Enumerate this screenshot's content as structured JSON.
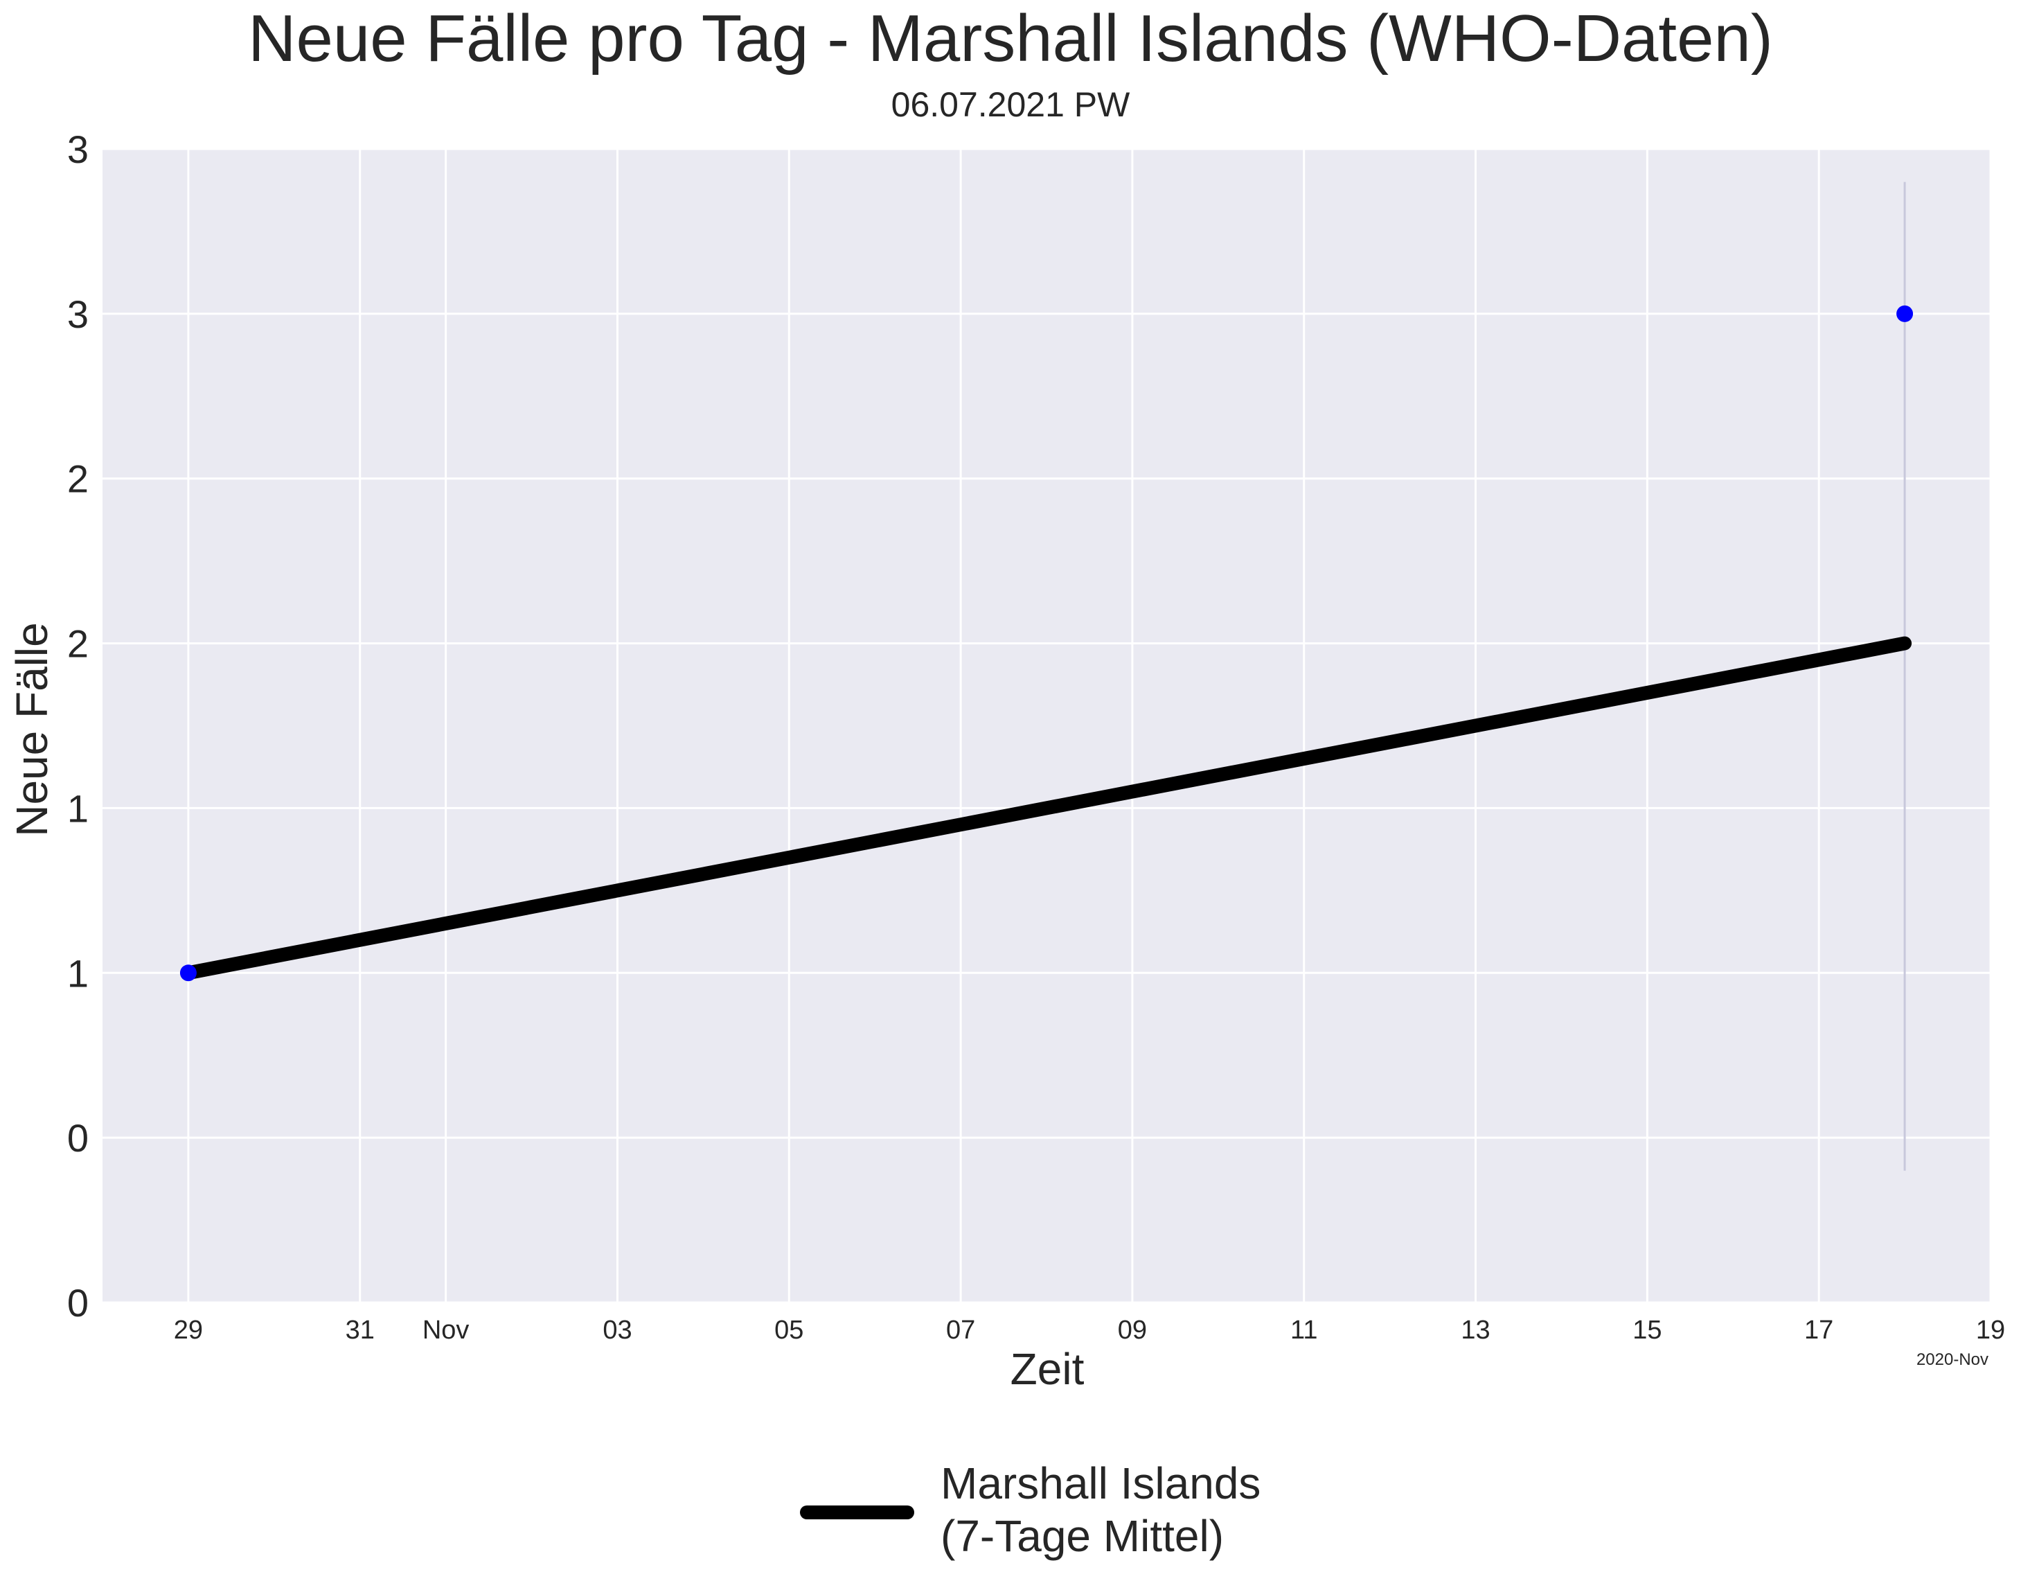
{
  "chart_data": {
    "type": "line",
    "title": "Neue Fälle pro Tag - Marshall Islands (WHO-Daten)",
    "subtitle": "06.07.2021 PW",
    "xlabel": "Zeit",
    "ylabel": "Neue Fälle",
    "x_offset_label": "2020-Nov",
    "xlim": [
      "2020-10-28",
      "2020-11-19"
    ],
    "ylim": [
      0.5,
      4.0
    ],
    "x_ticks": [
      {
        "date": "2020-10-29",
        "label": "29"
      },
      {
        "date": "2020-10-31",
        "label": "31"
      },
      {
        "date": "2020-11-01",
        "label": "Nov"
      },
      {
        "date": "2020-11-03",
        "label": "03"
      },
      {
        "date": "2020-11-05",
        "label": "05"
      },
      {
        "date": "2020-11-07",
        "label": "07"
      },
      {
        "date": "2020-11-09",
        "label": "09"
      },
      {
        "date": "2020-11-11",
        "label": "11"
      },
      {
        "date": "2020-11-13",
        "label": "13"
      },
      {
        "date": "2020-11-15",
        "label": "15"
      },
      {
        "date": "2020-11-17",
        "label": "17"
      },
      {
        "date": "2020-11-19",
        "label": "19"
      }
    ],
    "y_ticks": [
      {
        "value": 0.5,
        "label": "0"
      },
      {
        "value": 1.0,
        "label": "0"
      },
      {
        "value": 1.5,
        "label": "1"
      },
      {
        "value": 2.0,
        "label": "1"
      },
      {
        "value": 2.5,
        "label": "2"
      },
      {
        "value": 3.0,
        "label": "2"
      },
      {
        "value": 3.5,
        "label": "3"
      },
      {
        "value": 4.0,
        "label": "3"
      }
    ],
    "grid": true,
    "legend_position": "bottom-center",
    "series": [
      {
        "name": "Marshall Islands\n(7-Tage Mittel)",
        "kind": "line",
        "color": "#000000",
        "points": [
          {
            "x": "2020-10-29",
            "y": 1.5
          },
          {
            "x": "2020-11-18",
            "y": 2.5
          }
        ]
      },
      {
        "kind": "scatter",
        "color": "#0000ff",
        "points": [
          {
            "x": "2020-10-29",
            "y": 1.5
          },
          {
            "x": "2020-11-18",
            "y": 3.5
          }
        ]
      }
    ],
    "error_bar": {
      "x": "2020-11-18",
      "y_low": 0.9,
      "y_high": 3.9,
      "color": "#c8c8dc"
    },
    "colors": {
      "plot_background": "#eaeaf2",
      "grid": "#ffffff"
    }
  }
}
